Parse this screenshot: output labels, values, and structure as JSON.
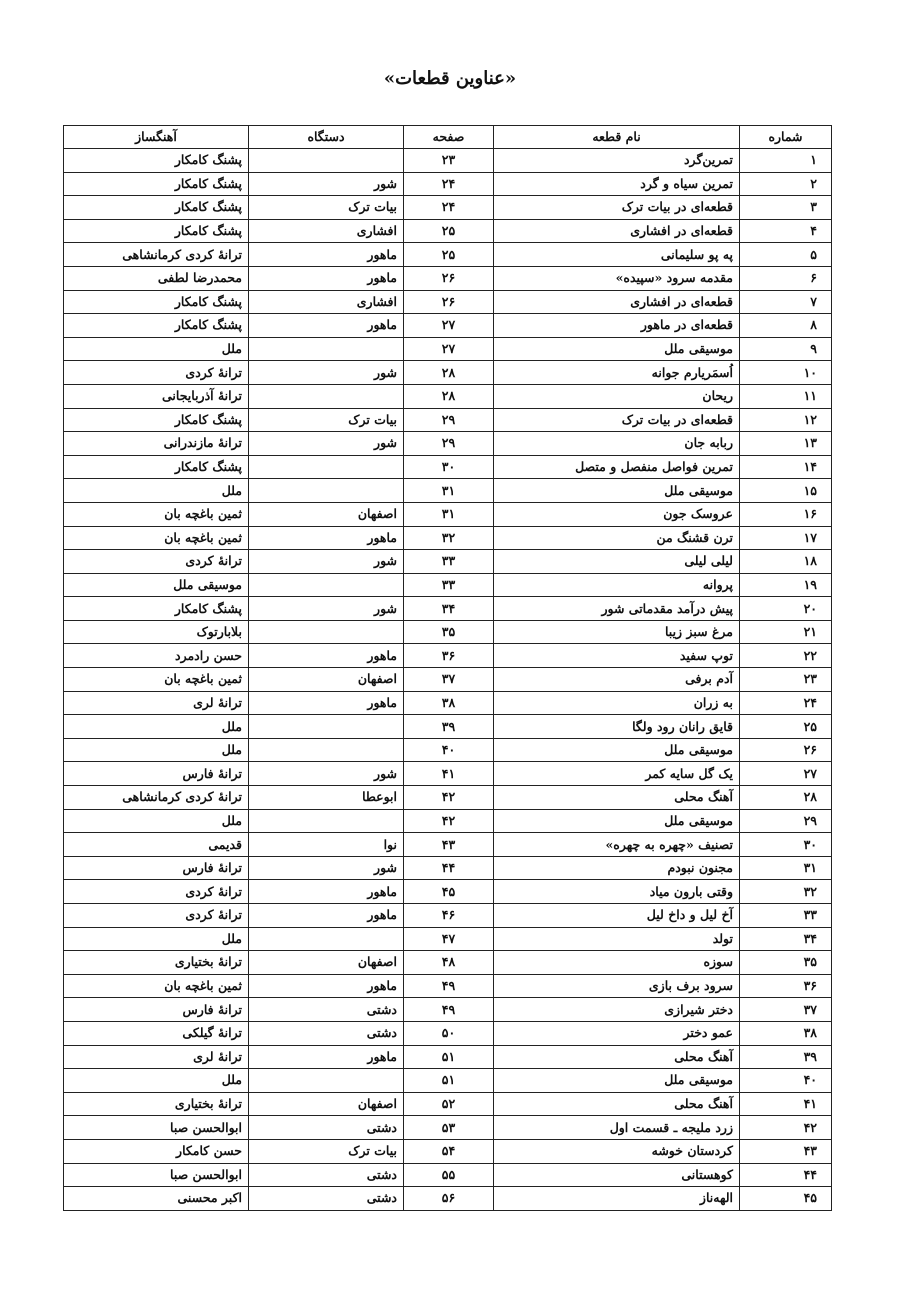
{
  "title": "«عناوین قطعات»",
  "headers": {
    "number": "شماره",
    "name": "نام قطعه",
    "page": "صفحه",
    "dastgah": "دستگاه",
    "composer": "آهنگساز"
  },
  "rows": [
    [
      "۱",
      "تمرین‌گرد",
      "۲۳",
      "",
      "پشنگ کامکار"
    ],
    [
      "۲",
      "تمرین سیاه و گرد",
      "۲۴",
      "شور",
      "پشنگ کامکار"
    ],
    [
      "۳",
      "قطعه‌ای در بیات ترک",
      "۲۴",
      "بیات ترک",
      "پشنگ کامکار"
    ],
    [
      "۴",
      "قطعه‌ای در افشاری",
      "۲۵",
      "افشاری",
      "پشنگ کامکار"
    ],
    [
      "۵",
      "په پو سلیمانی",
      "۲۵",
      "ماهور",
      "ترانهٔ کردی کرمانشاهی"
    ],
    [
      "۶",
      "مقدمه سرود «سپیده»",
      "۲۶",
      "ماهور",
      "محمدرضا لطفی"
    ],
    [
      "۷",
      "قطعه‌ای در افشاری",
      "۲۶",
      "افشاری",
      "پشنگ کامکار"
    ],
    [
      "۸",
      "قطعه‌ای در ماهور",
      "۲۷",
      "ماهور",
      "پشنگ کامکار"
    ],
    [
      "۹",
      "موسیقی ملل",
      "۲۷",
      "",
      "ملل"
    ],
    [
      "۱۰",
      "اُسمَریارم جوانه",
      "۲۸",
      "شور",
      "ترانهٔ کردی"
    ],
    [
      "۱۱",
      "ریحان",
      "۲۸",
      "",
      "ترانهٔ آذربایجانی"
    ],
    [
      "۱۲",
      "قطعه‌ای در بیات ترک",
      "۲۹",
      "بیات ترک",
      "پشنگ کامکار"
    ],
    [
      "۱۳",
      "ربابه جان",
      "۲۹",
      "شور",
      "ترانهٔ مازندرانی"
    ],
    [
      "۱۴",
      "تمرین فواصل منفصل و متصل",
      "۳۰",
      "",
      "پشنگ کامکار"
    ],
    [
      "۱۵",
      "موسیقی ملل",
      "۳۱",
      "",
      "ملل"
    ],
    [
      "۱۶",
      "عروسک جون",
      "۳۱",
      "اصفهان",
      "ثمین باغچه بان"
    ],
    [
      "۱۷",
      "ترن قشنگ من",
      "۳۲",
      "ماهور",
      "ثمین باغچه بان"
    ],
    [
      "۱۸",
      "لیلی لیلی",
      "۳۳",
      "شور",
      "ترانهٔ کردی"
    ],
    [
      "۱۹",
      "پروانه",
      "۳۳",
      "",
      "موسیقی ملل"
    ],
    [
      "۲۰",
      "پیش درآمد مقدماتی شور",
      "۳۴",
      "شور",
      "پشنگ کامکار"
    ],
    [
      "۲۱",
      "مرغ سبز زیبا",
      "۳۵",
      "",
      "بلابارتوک"
    ],
    [
      "۲۲",
      "توپ سفید",
      "۳۶",
      "ماهور",
      "حسن رادمرد"
    ],
    [
      "۲۳",
      "آدم برفی",
      "۳۷",
      "اصفهان",
      "ثمین باغچه بان"
    ],
    [
      "۲۴",
      "به زران",
      "۳۸",
      "ماهور",
      "ترانهٔ لری"
    ],
    [
      "۲۵",
      "قایق رانان رود ولگا",
      "۳۹",
      "",
      "ملل"
    ],
    [
      "۲۶",
      "موسیقی ملل",
      "۴۰",
      "",
      "ملل"
    ],
    [
      "۲۷",
      "یک گل سایه کمر",
      "۴۱",
      "شور",
      "ترانهٔ فارس"
    ],
    [
      "۲۸",
      "آهنگ محلی",
      "۴۲",
      "ابوعطا",
      "ترانهٔ کردی کرمانشاهی"
    ],
    [
      "۲۹",
      "موسیقی ملل",
      "۴۲",
      "",
      "ملل"
    ],
    [
      "۳۰",
      "تصنیف «چهره به چهره»",
      "۴۳",
      "نوا",
      "قدیمی"
    ],
    [
      "۳۱",
      "مجنون نبودم",
      "۴۴",
      "شور",
      "ترانهٔ فارس"
    ],
    [
      "۳۲",
      "وقتی بارون میاد",
      "۴۵",
      "ماهور",
      "ترانهٔ کردی"
    ],
    [
      "۳۳",
      "آخ لیل و داخ لیل",
      "۴۶",
      "ماهور",
      "ترانهٔ کردی"
    ],
    [
      "۳۴",
      "تولد",
      "۴۷",
      "",
      "ملل"
    ],
    [
      "۳۵",
      "سوزه",
      "۴۸",
      "اصفهان",
      "ترانهٔ بختیاری"
    ],
    [
      "۳۶",
      "سرود برف بازی",
      "۴۹",
      "ماهور",
      "ثمین باغچه بان"
    ],
    [
      "۳۷",
      "دختر شیرازی",
      "۴۹",
      "دشتی",
      "ترانهٔ فارس"
    ],
    [
      "۳۸",
      "عمو دختر",
      "۵۰",
      "دشتی",
      "ترانهٔ گیلکی"
    ],
    [
      "۳۹",
      "آهنگ محلی",
      "۵۱",
      "ماهور",
      "ترانهٔ لری"
    ],
    [
      "۴۰",
      "موسیقی ملل",
      "۵۱",
      "",
      "ملل"
    ],
    [
      "۴۱",
      "آهنگ محلی",
      "۵۲",
      "اصفهان",
      "ترانهٔ بختیاری"
    ],
    [
      "۴۲",
      "زرد ملیجه ـ قسمت اول",
      "۵۳",
      "دشتی",
      "ابوالحسن صبا"
    ],
    [
      "۴۳",
      "کردستان خوشه",
      "۵۴",
      "بیات ترک",
      "حسن کامکار"
    ],
    [
      "۴۴",
      "کوهستانی",
      "۵۵",
      "دشتی",
      "ابوالحسن صبا"
    ],
    [
      "۴۵",
      "الهه‌ناز",
      "۵۶",
      "دشتی",
      "اکبر محسنی"
    ]
  ]
}
